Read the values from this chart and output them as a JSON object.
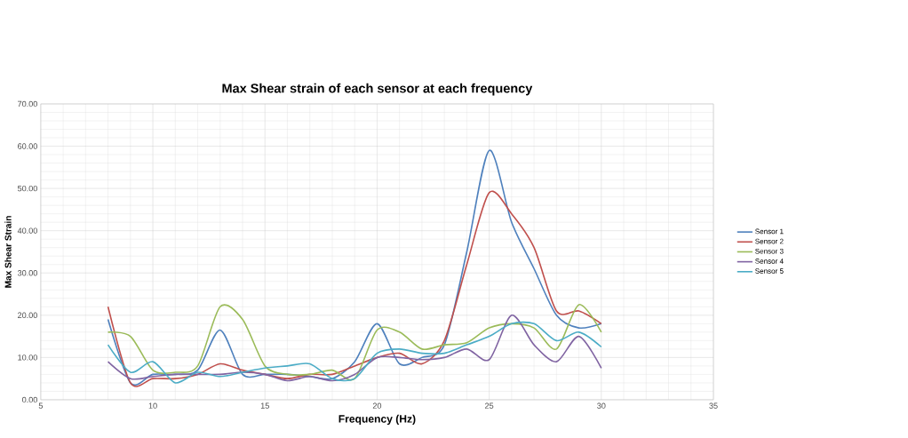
{
  "chart_data": {
    "type": "line",
    "title": "Max Shear strain of each sensor at each frequency",
    "xlabel": "Frequency (Hz)",
    "ylabel": "Max Shear Strain",
    "x": [
      8,
      9,
      10,
      11,
      12,
      13,
      14,
      15,
      16,
      17,
      18,
      19,
      20,
      21,
      22,
      23,
      24,
      25,
      26,
      27,
      28,
      29,
      30
    ],
    "series": [
      {
        "name": "Sensor 1",
        "color": "#4f81bd",
        "values": [
          19,
          4,
          6,
          6,
          7,
          16.5,
          6,
          6,
          6,
          5.5,
          5,
          9,
          18,
          8.5,
          10,
          13,
          35,
          59,
          42,
          31,
          20,
          17,
          18
        ]
      },
      {
        "name": "Sensor 2",
        "color": "#c0504d",
        "values": [
          22,
          4,
          5,
          5,
          6,
          8.5,
          7,
          6,
          5,
          6,
          6,
          8,
          10,
          11,
          8.5,
          14,
          32,
          49,
          44,
          36,
          21,
          21,
          18
        ]
      },
      {
        "name": "Sensor 3",
        "color": "#9bbb59",
        "values": [
          16,
          15,
          7,
          6.5,
          8,
          22,
          19,
          8,
          6,
          6,
          7,
          5,
          16.5,
          16,
          12,
          13,
          13.5,
          17,
          18,
          17,
          12,
          22.5,
          16
        ]
      },
      {
        "name": "Sensor 4",
        "color": "#8064a2",
        "values": [
          9,
          5,
          5.5,
          6,
          6,
          6,
          6.5,
          6,
          4.5,
          5.5,
          4.5,
          6,
          10,
          10,
          9.5,
          10,
          12,
          9.5,
          20,
          13,
          9,
          15,
          7.5
        ]
      },
      {
        "name": "Sensor 5",
        "color": "#4bacc6",
        "values": [
          13,
          6.5,
          9,
          4,
          6.5,
          5.5,
          6.5,
          7.5,
          8,
          8.5,
          5,
          5,
          11,
          12,
          11,
          11,
          13,
          15,
          18,
          18,
          14,
          16,
          12.5
        ]
      }
    ],
    "xlim": [
      5,
      35
    ],
    "xticks": [
      5,
      10,
      15,
      20,
      25,
      30,
      35
    ],
    "ylim": [
      0,
      70
    ],
    "yticks": [
      {
        "value": 0,
        "label": "0.00"
      },
      {
        "value": 10,
        "label": "10.00"
      },
      {
        "value": 20,
        "label": "20.00"
      },
      {
        "value": 30,
        "label": "30.00"
      },
      {
        "value": 40,
        "label": "40.00"
      },
      {
        "value": 50,
        "label": "50.00"
      },
      {
        "value": 60,
        "label": "60.00"
      },
      {
        "value": 70,
        "label": "70.00"
      }
    ],
    "grid": true,
    "legend": "right",
    "marker": "none",
    "line_style": "solid"
  }
}
